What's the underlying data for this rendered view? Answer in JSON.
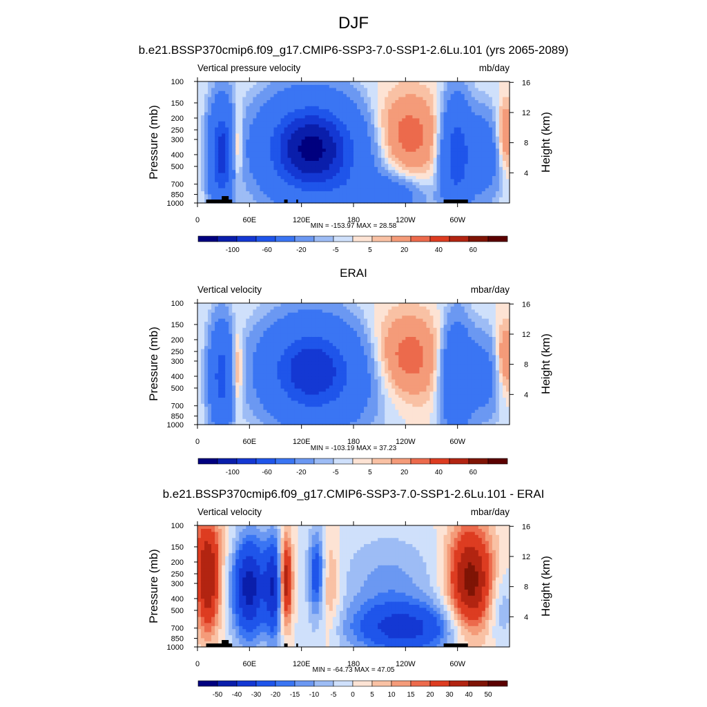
{
  "figure": {
    "title": "DJF",
    "x_tick_labels": [
      "0",
      "60E",
      "120E",
      "180",
      "120W",
      "60W"
    ],
    "y_tick_labels": [
      "100",
      "150",
      "200",
      "250",
      "300",
      "400",
      "500",
      "700",
      "850",
      "1000"
    ],
    "height_tick_labels": [
      "16",
      "12",
      "8",
      "4"
    ]
  },
  "panels": [
    {
      "title": "b.e21.BSSP370cmip6.f09_g17.CMIP6-SSP3-7.0-SSP1-2.6Lu.101 (yrs 2065-2089)",
      "left_label": "Vertical pressure velocity",
      "right_label": "mb/day",
      "ylabel": "Pressure (mb)",
      "y2label": "Height (km)",
      "stats": "MIN = -153.97  MAX =  28.58",
      "colorbar_labels": [
        "-100",
        "-60",
        "-20",
        "-5",
        "5",
        "20",
        "40",
        "60"
      ]
    },
    {
      "title": "ERAI",
      "left_label": "Vertical velocity",
      "right_label": "mbar/day",
      "ylabel": "Pressure (mb)",
      "y2label": "Height (km)",
      "stats": "MIN = -103.19  MAX =  37.23",
      "colorbar_labels": [
        "-100",
        "-60",
        "-20",
        "-5",
        "5",
        "20",
        "40",
        "60"
      ]
    },
    {
      "title": "b.e21.BSSP370cmip6.f09_g17.CMIP6-SSP3-7.0-SSP1-2.6Lu.101 - ERAI",
      "left_label": "Vertical velocity",
      "right_label": "mbar/day",
      "ylabel": "Pressure (mb)",
      "y2label": "Height (km)",
      "stats": "MIN = -64.73  MAX =  47.05",
      "colorbar_labels": [
        "-50",
        "-40",
        "-30",
        "-20",
        "-15",
        "-10",
        "-5",
        "0",
        "5",
        "10",
        "15",
        "20",
        "30",
        "40",
        "50"
      ]
    }
  ],
  "colors": {
    "palette": [
      "#00007f",
      "#0a1eab",
      "#1438d3",
      "#1f55ea",
      "#3a75f3",
      "#6b98f2",
      "#9dbcf5",
      "#cfe0fb",
      "#fde3d4",
      "#f9c1a4",
      "#f49b79",
      "#ec6a4c",
      "#dd3c21",
      "#b22411",
      "#7f1405",
      "#5b0000"
    ]
  },
  "chart_data": [
    {
      "type": "heatmap",
      "title": "b.e21.BSSP370cmip6.f09_g17.CMIP6-SSP3-7.0-SSP1-2.6Lu.101 (yrs 2065-2089)",
      "xlabel": "",
      "ylabel": "Pressure (mb)",
      "y2label": "Height (km)",
      "x_ticks": [
        "0",
        "60E",
        "120E",
        "180",
        "120W",
        "60W"
      ],
      "y_ticks_mb": [
        100,
        150,
        200,
        250,
        300,
        400,
        500,
        700,
        850,
        1000
      ],
      "y2_ticks_km": [
        16,
        12,
        8,
        4
      ],
      "y_scale": "log",
      "ylim": [
        1000,
        100
      ],
      "units": "mb/day",
      "contour_levels": [
        -120,
        -100,
        -80,
        -60,
        -40,
        -20,
        -10,
        -5,
        0,
        5,
        10,
        20,
        30,
        40,
        50,
        60,
        70
      ],
      "min": -153.97,
      "max": 28.58
    },
    {
      "type": "heatmap",
      "title": "ERAI",
      "xlabel": "",
      "ylabel": "Pressure (mb)",
      "y2label": "Height (km)",
      "x_ticks": [
        "0",
        "60E",
        "120E",
        "180",
        "120W",
        "60W"
      ],
      "y_ticks_mb": [
        100,
        150,
        200,
        250,
        300,
        400,
        500,
        700,
        850,
        1000
      ],
      "y2_ticks_km": [
        16,
        12,
        8,
        4
      ],
      "y_scale": "log",
      "ylim": [
        1000,
        100
      ],
      "units": "mbar/day",
      "contour_levels": [
        -120,
        -100,
        -80,
        -60,
        -40,
        -20,
        -10,
        -5,
        0,
        5,
        10,
        20,
        30,
        40,
        50,
        60,
        70
      ],
      "min": -103.19,
      "max": 37.23
    },
    {
      "type": "heatmap",
      "title": "b.e21.BSSP370cmip6.f09_g17.CMIP6-SSP3-7.0-SSP1-2.6Lu.101 - ERAI",
      "xlabel": "",
      "ylabel": "Pressure (mb)",
      "y2label": "Height (km)",
      "x_ticks": [
        "0",
        "60E",
        "120E",
        "180",
        "120W",
        "60W"
      ],
      "y_ticks_mb": [
        100,
        150,
        200,
        250,
        300,
        400,
        500,
        700,
        850,
        1000
      ],
      "y2_ticks_km": [
        16,
        12,
        8,
        4
      ],
      "y_scale": "log",
      "ylim": [
        1000,
        100
      ],
      "units": "mbar/day",
      "contour_levels": [
        -50,
        -40,
        -30,
        -20,
        -15,
        -10,
        -5,
        0,
        5,
        10,
        15,
        20,
        30,
        40,
        50
      ],
      "min": -64.73,
      "max": 47.05
    }
  ]
}
